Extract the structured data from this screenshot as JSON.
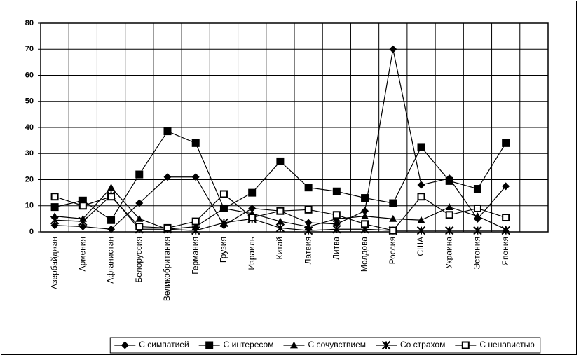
{
  "chart_data": {
    "type": "line",
    "categories": [
      "Азербайджан",
      "Армения",
      "Афганистан",
      "Белоруссия",
      "Великобритания",
      "Германия",
      "Грузия",
      "Израиль",
      "Китай",
      "Латвия",
      "Литва",
      "Молдова",
      "Россия",
      "США",
      "Украина",
      "Эстония",
      "Япония",
      null
    ],
    "series": [
      {
        "name": "С симпатией",
        "color": "#000000",
        "marker": "diamond",
        "values": [
          2.5,
          2,
          1,
          11,
          21,
          21,
          2.5,
          9,
          8,
          3.5,
          3,
          8,
          70,
          18,
          20.5,
          5,
          17.5,
          null
        ]
      },
      {
        "name": "С интересом",
        "color": "#000000",
        "marker": "square",
        "values": [
          9.5,
          12,
          4.5,
          22,
          38.5,
          34,
          9,
          15,
          27,
          17,
          15.5,
          13,
          11,
          32.5,
          19.5,
          16.5,
          34,
          null
        ]
      },
      {
        "name": "С сочувствием",
        "color": "#000000",
        "marker": "triangle",
        "values": [
          6,
          5,
          17,
          5,
          1,
          2,
          9,
          7,
          4,
          2,
          5,
          6,
          5,
          4.5,
          9.5,
          6,
          1,
          null
        ]
      },
      {
        "name": "Со страхом",
        "color": "#000000",
        "marker": "cross",
        "values": [
          4.5,
          4,
          14,
          1,
          1,
          0.5,
          3.5,
          5,
          1.5,
          0.5,
          1,
          1,
          0.5,
          0.5,
          0.5,
          0.5,
          0.5,
          null
        ]
      },
      {
        "name": "С ненавистью",
        "color": "#000000",
        "marker": "hollow-square",
        "values": [
          13.5,
          10,
          13.5,
          2,
          1.5,
          4,
          14.5,
          5.5,
          8,
          8.5,
          6.5,
          3,
          0.5,
          13.5,
          6.5,
          9,
          5.5,
          null
        ]
      }
    ],
    "ylim": [
      0,
      80
    ],
    "yticks": [
      0,
      10,
      20,
      30,
      40,
      50,
      60,
      70,
      80
    ],
    "grid": true,
    "legend": "bottom"
  }
}
